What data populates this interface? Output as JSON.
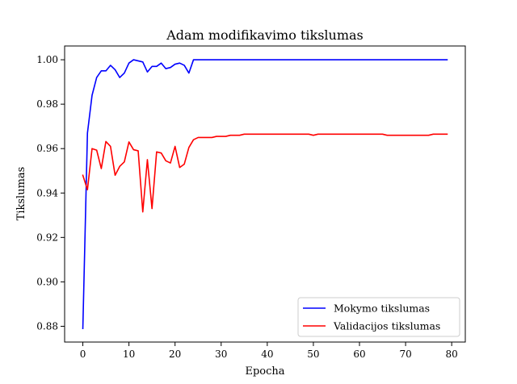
{
  "chart_data": {
    "type": "line",
    "title": "Adam modifikavimo tikslumas",
    "xlabel": "Epocha",
    "ylabel": "Tikslumas",
    "xlim": [
      -3.95,
      82.95
    ],
    "ylim": [
      0.8729,
      1.0062
    ],
    "xticks": [
      0,
      10,
      20,
      30,
      40,
      50,
      60,
      70,
      80
    ],
    "yticks": [
      0.88,
      0.9,
      0.92,
      0.94,
      0.96,
      0.98,
      1.0
    ],
    "xtick_labels": [
      "0",
      "10",
      "20",
      "30",
      "40",
      "50",
      "60",
      "70",
      "80"
    ],
    "ytick_labels": [
      "0.88",
      "0.90",
      "0.92",
      "0.94",
      "0.96",
      "0.98",
      "1.00"
    ],
    "grid": false,
    "legend_position": "lower-right",
    "series": [
      {
        "name": "Mokymo tikslumas",
        "color": "#0000ff",
        "x": [
          0,
          1,
          2,
          3,
          4,
          5,
          6,
          7,
          8,
          9,
          10,
          11,
          12,
          13,
          14,
          15,
          16,
          17,
          18,
          19,
          20,
          21,
          22,
          23,
          24,
          25,
          26,
          27,
          28,
          29,
          30,
          31,
          32,
          33,
          34,
          35,
          36,
          37,
          38,
          39,
          40,
          41,
          42,
          43,
          44,
          45,
          46,
          47,
          48,
          49,
          50,
          51,
          52,
          53,
          54,
          55,
          56,
          57,
          58,
          59,
          60,
          61,
          62,
          63,
          64,
          65,
          66,
          67,
          68,
          69,
          70,
          71,
          72,
          73,
          74,
          75,
          76,
          77,
          78,
          79
        ],
        "values": [
          0.879,
          0.967,
          0.984,
          0.992,
          0.995,
          0.995,
          0.9975,
          0.9955,
          0.992,
          0.994,
          0.9985,
          1.0,
          0.9995,
          0.999,
          0.9945,
          0.997,
          0.997,
          0.9985,
          0.996,
          0.9965,
          0.998,
          0.9985,
          0.9975,
          0.994,
          1.0,
          1.0,
          1.0,
          1.0,
          1.0,
          1.0,
          1.0,
          1.0,
          1.0,
          1.0,
          1.0,
          1.0,
          1.0,
          1.0,
          1.0,
          1.0,
          1.0,
          1.0,
          1.0,
          1.0,
          1.0,
          1.0,
          1.0,
          1.0,
          1.0,
          1.0,
          1.0,
          1.0,
          1.0,
          1.0,
          1.0,
          1.0,
          1.0,
          1.0,
          1.0,
          1.0,
          1.0,
          1.0,
          1.0,
          1.0,
          1.0,
          1.0,
          1.0,
          1.0,
          1.0,
          1.0,
          1.0,
          1.0,
          1.0,
          1.0,
          1.0,
          1.0,
          1.0,
          1.0,
          1.0,
          1.0
        ]
      },
      {
        "name": "Validacijos tikslumas",
        "color": "#ff0000",
        "x": [
          0,
          1,
          2,
          3,
          4,
          5,
          6,
          7,
          8,
          9,
          10,
          11,
          12,
          13,
          14,
          15,
          16,
          17,
          18,
          19,
          20,
          21,
          22,
          23,
          24,
          25,
          26,
          27,
          28,
          29,
          30,
          31,
          32,
          33,
          34,
          35,
          36,
          37,
          38,
          39,
          40,
          41,
          42,
          43,
          44,
          45,
          46,
          47,
          48,
          49,
          50,
          51,
          52,
          53,
          54,
          55,
          56,
          57,
          58,
          59,
          60,
          61,
          62,
          63,
          64,
          65,
          66,
          67,
          68,
          69,
          70,
          71,
          72,
          73,
          74,
          75,
          76,
          77,
          78,
          79
        ],
        "values": [
          0.948,
          0.9415,
          0.96,
          0.9593,
          0.951,
          0.9632,
          0.961,
          0.948,
          0.952,
          0.954,
          0.963,
          0.9595,
          0.959,
          0.9315,
          0.955,
          0.933,
          0.9585,
          0.958,
          0.9545,
          0.9535,
          0.961,
          0.9515,
          0.953,
          0.9605,
          0.964,
          0.965,
          0.965,
          0.965,
          0.965,
          0.9655,
          0.9655,
          0.9655,
          0.966,
          0.966,
          0.966,
          0.9665,
          0.9665,
          0.9665,
          0.9665,
          0.9665,
          0.9665,
          0.9665,
          0.9665,
          0.9665,
          0.9665,
          0.9665,
          0.9665,
          0.9665,
          0.9665,
          0.9665,
          0.966,
          0.9665,
          0.9665,
          0.9665,
          0.9665,
          0.9665,
          0.9665,
          0.9665,
          0.9665,
          0.9665,
          0.9665,
          0.9665,
          0.9665,
          0.9665,
          0.9665,
          0.9665,
          0.966,
          0.966,
          0.966,
          0.966,
          0.966,
          0.966,
          0.966,
          0.966,
          0.966,
          0.966,
          0.9665,
          0.9665,
          0.9665,
          0.9665
        ]
      }
    ]
  }
}
